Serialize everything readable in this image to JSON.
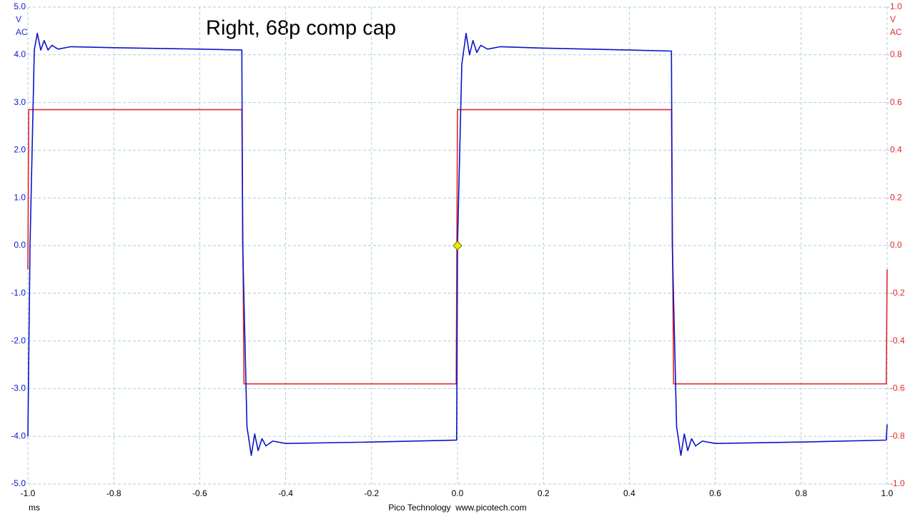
{
  "chart_data": {
    "type": "line",
    "title": "Right, 68p comp cap",
    "y_unit": "V",
    "y_coupling": "AC",
    "y2_unit": "V",
    "y2_coupling": "AC",
    "x_unit": "ms",
    "footer": "Pico Technology  www.picotech.com",
    "grid": true,
    "xlim": [
      -1.0,
      1.0
    ],
    "xticks": [
      {
        "value": -1.0,
        "label": "-1.0"
      },
      -0.8,
      -0.6,
      -0.4,
      -0.2,
      {
        "value": 0.0,
        "label": "0.0"
      },
      0.2,
      0.4,
      0.6,
      0.8,
      {
        "value": 1.0,
        "label": "1.0"
      }
    ],
    "ylim": [
      -5.0,
      5.0
    ],
    "yticks": [
      {
        "value": 5.0,
        "label": "5.0"
      },
      {
        "value": 4.0,
        "label": "4.0"
      },
      {
        "value": 3.0,
        "label": "3.0"
      },
      {
        "value": 2.0,
        "label": "2.0"
      },
      {
        "value": 1.0,
        "label": "1.0"
      },
      {
        "value": 0.0,
        "label": "0.0"
      },
      {
        "value": -1.0,
        "label": "-1.0"
      },
      {
        "value": -2.0,
        "label": "-2.0"
      },
      {
        "value": -3.0,
        "label": "-3.0"
      },
      {
        "value": -4.0,
        "label": "-4.0"
      },
      {
        "value": -5.0,
        "label": "-5.0"
      }
    ],
    "y2lim": [
      -1.0,
      1.0
    ],
    "y2ticks": [
      {
        "value": 1.0,
        "label": "1.0"
      },
      0.8,
      0.6,
      0.4,
      0.2,
      {
        "value": 0.0,
        "label": "0.0"
      },
      -0.2,
      -0.4,
      -0.6,
      -0.8,
      {
        "value": -1.0,
        "label": "-1.0"
      }
    ],
    "series": [
      {
        "color": "#0a14c8",
        "x": [
          -1.0,
          -0.995,
          -0.985,
          -0.978,
          -0.97,
          -0.962,
          -0.953,
          -0.944,
          -0.93,
          -0.9,
          -0.8,
          -0.6,
          -0.502,
          -0.5,
          -0.49,
          -0.48,
          -0.472,
          -0.464,
          -0.455,
          -0.446,
          -0.43,
          -0.4,
          -0.2,
          -0.002,
          0.0,
          0.01,
          0.02,
          0.028,
          0.036,
          0.045,
          0.054,
          0.07,
          0.1,
          0.2,
          0.4,
          0.498,
          0.5,
          0.51,
          0.52,
          0.528,
          0.536,
          0.545,
          0.554,
          0.57,
          0.6,
          0.8,
          0.998,
          1.0
        ],
        "values": [
          -4.0,
          0.0,
          4.1,
          4.45,
          4.1,
          4.3,
          4.1,
          4.2,
          4.12,
          4.17,
          4.15,
          4.12,
          4.1,
          0.0,
          -3.8,
          -4.4,
          -3.95,
          -4.3,
          -4.05,
          -4.2,
          -4.1,
          -4.15,
          -4.12,
          -4.08,
          0.0,
          3.8,
          4.45,
          4.0,
          4.3,
          4.05,
          4.2,
          4.12,
          4.17,
          4.14,
          4.1,
          4.08,
          0.0,
          -3.8,
          -4.4,
          -3.95,
          -4.3,
          -4.05,
          -4.2,
          -4.1,
          -4.15,
          -4.12,
          -4.08,
          -3.75
        ]
      },
      {
        "color": "#e02828",
        "axis": "y2",
        "x": [
          -1.0,
          -0.998,
          -0.502,
          -0.497,
          -0.003,
          0.0,
          0.498,
          0.503,
          0.998,
          1.0
        ],
        "values": [
          -0.1,
          0.57,
          0.57,
          -0.58,
          -0.58,
          0.57,
          0.57,
          -0.58,
          -0.58,
          -0.1
        ]
      }
    ]
  }
}
